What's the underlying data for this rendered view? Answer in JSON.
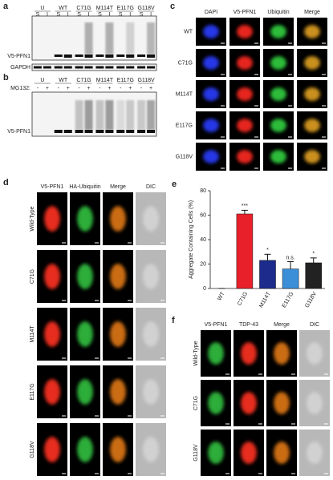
{
  "panels": {
    "a": {
      "label": "a",
      "lanes": [
        "U",
        "WT",
        "C71G",
        "M114T",
        "E117G",
        "G118V"
      ],
      "fractions": [
        "S",
        "I"
      ],
      "bands": [
        "V5-PFN1",
        "GAPDH"
      ]
    },
    "b": {
      "label": "b",
      "treatment": "MG132:",
      "lanes": [
        "U",
        "WT",
        "C71G",
        "M114T",
        "E117G",
        "G118V"
      ],
      "conditions": [
        "-",
        "+"
      ],
      "band": "V5-PFN1"
    },
    "c": {
      "label": "c",
      "columns": [
        "DAPI",
        "V5-PFN1",
        "Ubiquitin",
        "Merge"
      ],
      "rows": [
        "WT",
        "C71G",
        "M114T",
        "E117G",
        "G118V"
      ]
    },
    "d": {
      "label": "d",
      "columns": [
        "V5-PFN1",
        "HA-Ubiquitin",
        "Merge",
        "DIC"
      ],
      "rows": [
        "Wild-Type",
        "C71G",
        "M114T",
        "E117G",
        "G118V"
      ]
    },
    "f": {
      "label": "f",
      "columns": [
        "V5-PFN1",
        "TDP-43",
        "Merge",
        "DIC"
      ],
      "rows": [
        "Wild-Type",
        "C71G",
        "G118V"
      ]
    }
  },
  "chart_data": {
    "type": "bar",
    "label": "e",
    "ylabel": "Aggregate Containing Cells (%)",
    "categories": [
      "WT",
      "C71G",
      "M114T",
      "E117G",
      "G118V"
    ],
    "values": [
      0,
      61,
      23,
      16,
      21
    ],
    "errors": [
      0,
      3,
      5,
      6,
      4
    ],
    "colors": [
      "#222222",
      "#e8202a",
      "#1c2b8c",
      "#3b8fd8",
      "#222222"
    ],
    "annotations": [
      null,
      "***",
      "*",
      "n.s.",
      "*"
    ],
    "ylim": [
      0,
      80
    ],
    "yticks": [
      0,
      20,
      40,
      60,
      80
    ]
  }
}
